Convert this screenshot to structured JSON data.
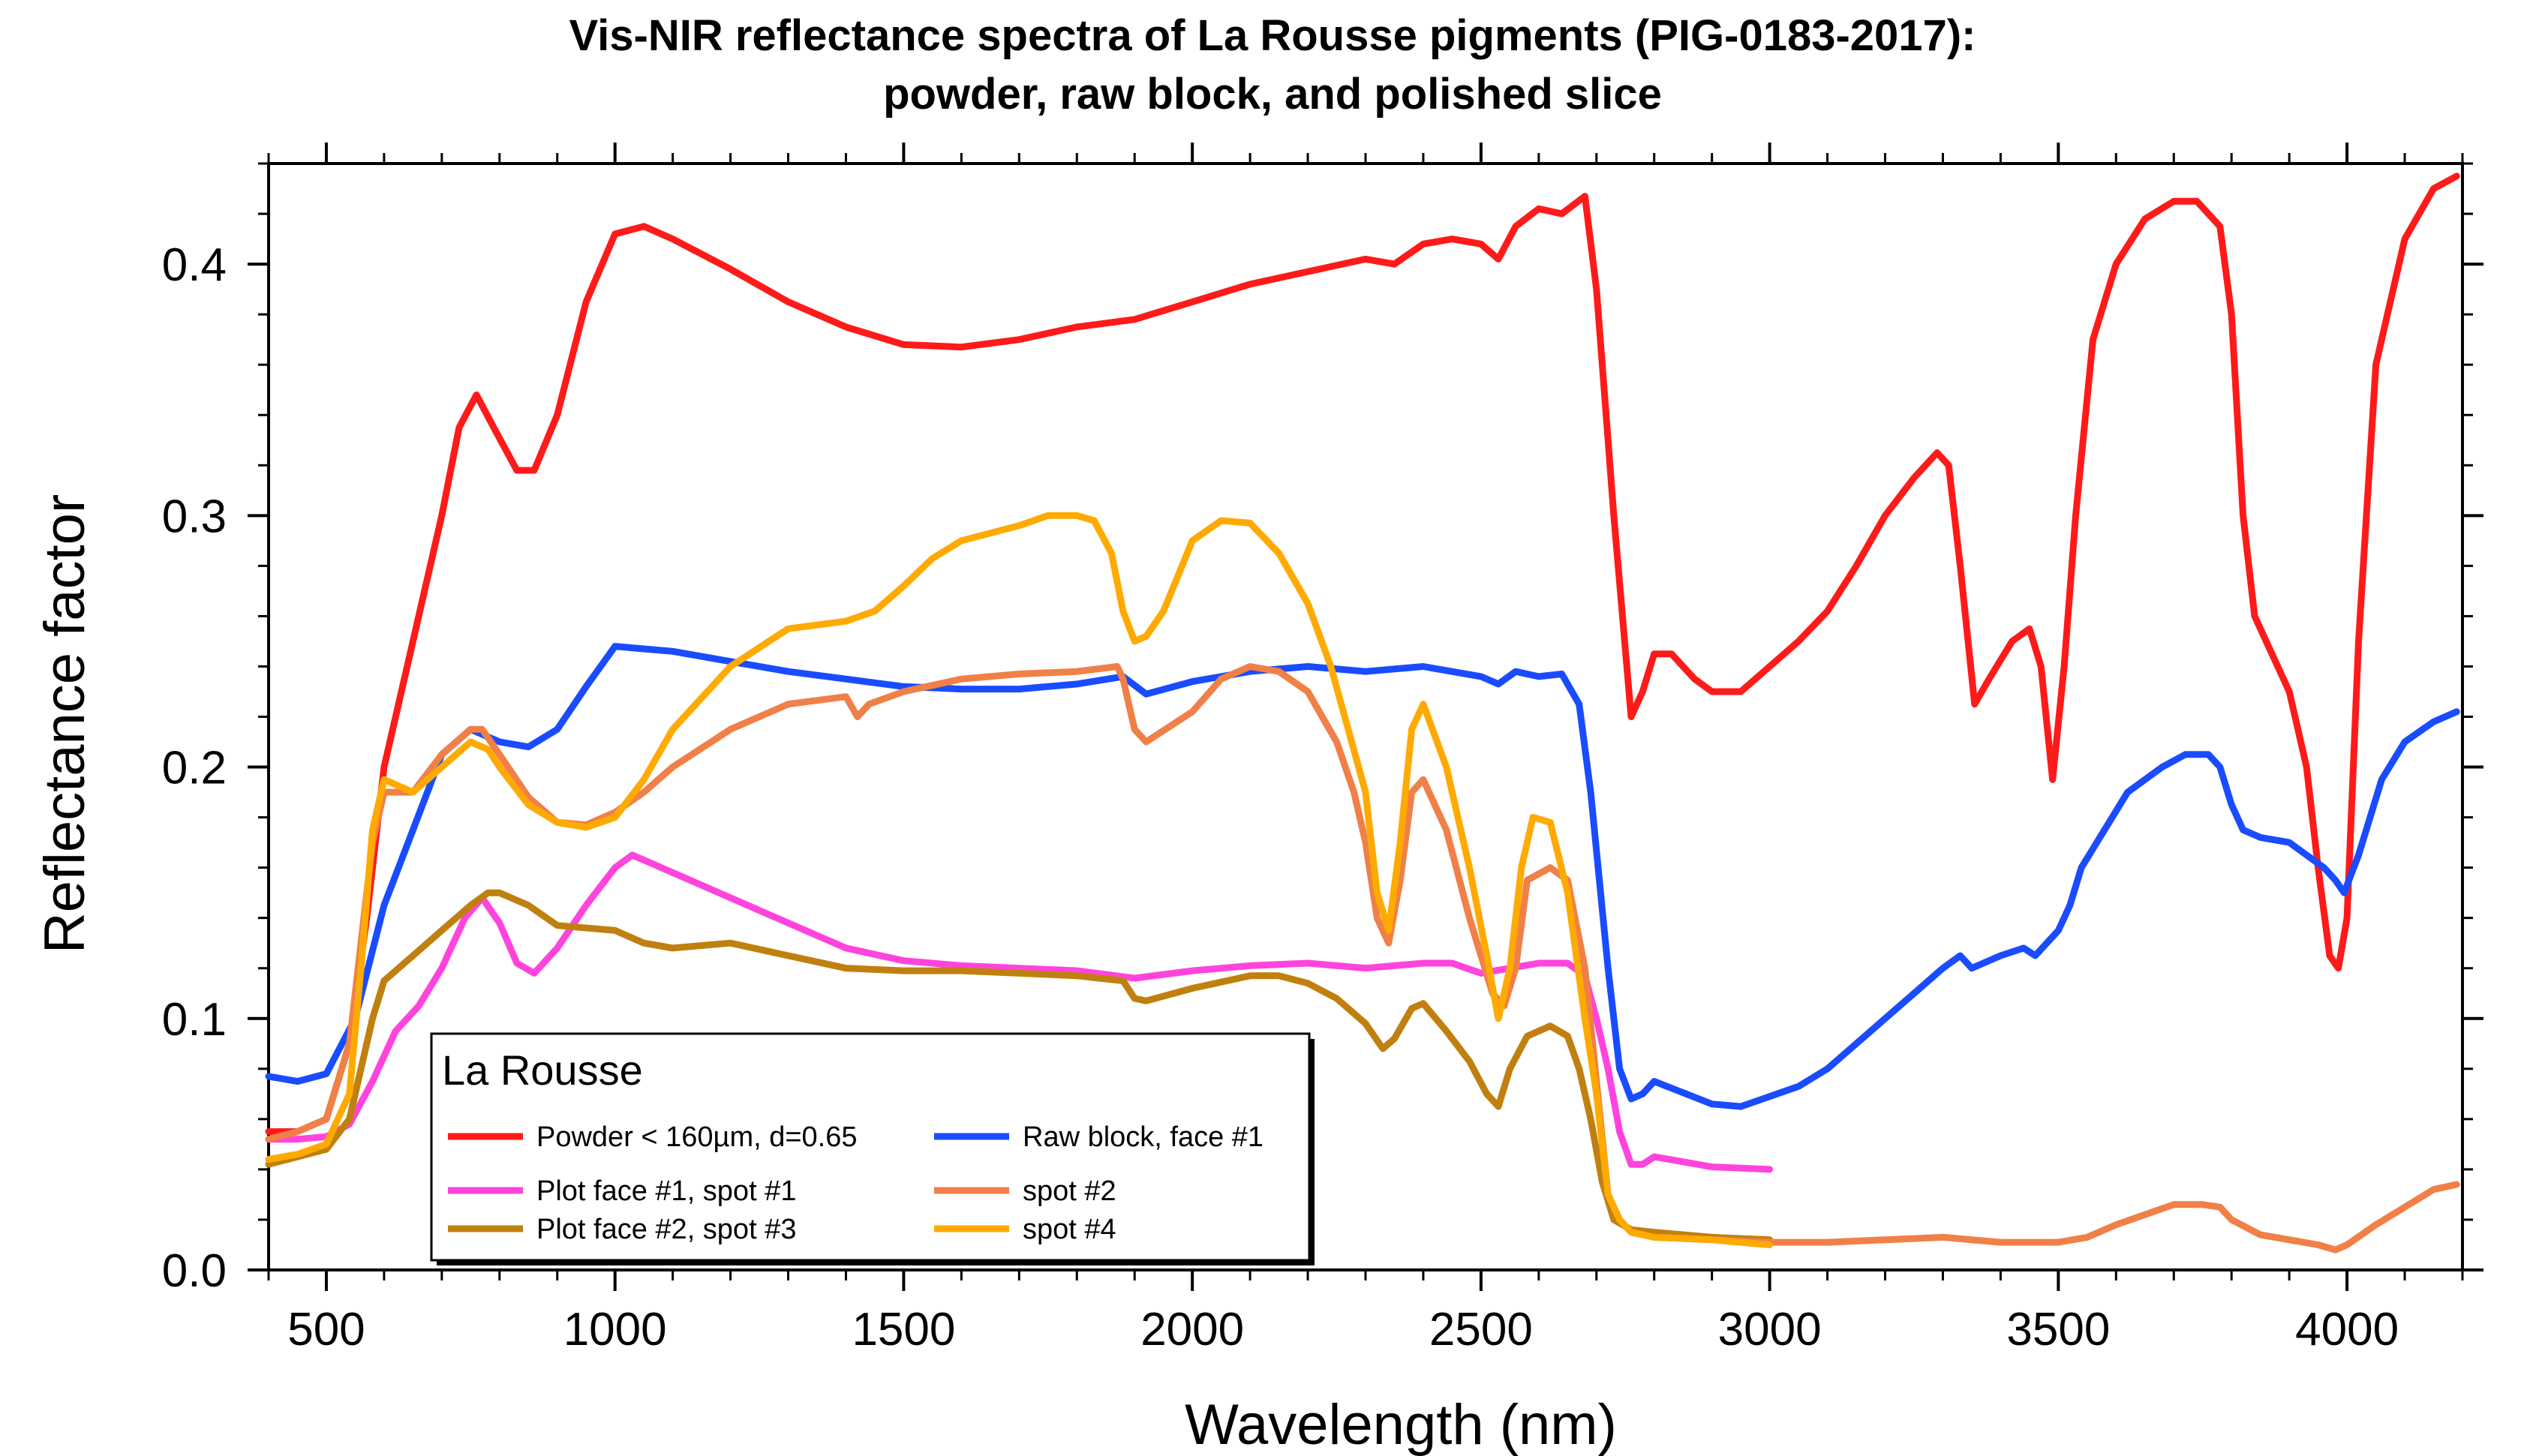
{
  "chart_data": {
    "type": "line",
    "title": "Vis-NIR reflectance spectra of La Rousse pigments (PIG-0183-2017):",
    "subtitle": "powder, raw block, and polished slice",
    "xlabel": "Wavelength (nm)",
    "ylabel": "Reflectance factor",
    "xlim": [
      400,
      4200
    ],
    "ylim": [
      0,
      0.44
    ],
    "xticks": [
      500,
      1000,
      1500,
      2000,
      2500,
      3000,
      3500,
      4000
    ],
    "xtick_labels": [
      "500",
      "1000",
      "1500",
      "2000",
      "2500",
      "3000",
      "3500",
      "4000"
    ],
    "yticks": [
      0.0,
      0.1,
      0.2,
      0.3,
      0.4
    ],
    "ytick_labels": [
      "0.0",
      "0.1",
      "0.2",
      "0.3",
      "0.4"
    ],
    "grid": false,
    "legend": {
      "title": "La Rousse",
      "placement": "bottom-left"
    },
    "series": [
      {
        "name": "Powder < 160µm, d=0.65",
        "color": "#ff1a1a",
        "x": [
          400,
          450,
          500,
          540,
          570,
          600,
          650,
          700,
          730,
          760,
          790,
          830,
          860,
          900,
          950,
          1000,
          1050,
          1100,
          1200,
          1300,
          1400,
          1500,
          1600,
          1700,
          1800,
          1900,
          2000,
          2100,
          2200,
          2300,
          2350,
          2400,
          2450,
          2500,
          2530,
          2560,
          2600,
          2640,
          2680,
          2700,
          2730,
          2760,
          2780,
          2800,
          2830,
          2870,
          2900,
          2950,
          3000,
          3050,
          3100,
          3150,
          3200,
          3250,
          3290,
          3310,
          3330,
          3355,
          3380,
          3420,
          3450,
          3470,
          3490,
          3510,
          3530,
          3560,
          3600,
          3650,
          3700,
          3740,
          3780,
          3800,
          3820,
          3840,
          3870,
          3900,
          3930,
          3950,
          3970,
          3985,
          4000,
          4020,
          4050,
          4100,
          4150,
          4190
        ],
        "y": [
          0.055,
          0.055,
          0.06,
          0.09,
          0.14,
          0.2,
          0.25,
          0.3,
          0.335,
          0.348,
          0.335,
          0.318,
          0.318,
          0.34,
          0.385,
          0.412,
          0.415,
          0.41,
          0.398,
          0.385,
          0.375,
          0.368,
          0.367,
          0.37,
          0.375,
          0.378,
          0.385,
          0.392,
          0.397,
          0.402,
          0.4,
          0.408,
          0.41,
          0.408,
          0.402,
          0.415,
          0.422,
          0.42,
          0.427,
          0.39,
          0.3,
          0.22,
          0.23,
          0.245,
          0.245,
          0.235,
          0.23,
          0.23,
          0.24,
          0.25,
          0.262,
          0.28,
          0.3,
          0.315,
          0.325,
          0.32,
          0.28,
          0.225,
          0.235,
          0.25,
          0.255,
          0.24,
          0.195,
          0.24,
          0.3,
          0.37,
          0.4,
          0.418,
          0.425,
          0.425,
          0.415,
          0.38,
          0.3,
          0.26,
          0.245,
          0.23,
          0.2,
          0.16,
          0.125,
          0.12,
          0.14,
          0.25,
          0.36,
          0.41,
          0.43,
          0.435
        ]
      },
      {
        "name": "Raw block, face #1",
        "color": "#1a4cff",
        "x": [
          400,
          450,
          500,
          550,
          600,
          650,
          700,
          750,
          800,
          850,
          900,
          950,
          1000,
          1050,
          1100,
          1200,
          1300,
          1400,
          1500,
          1600,
          1700,
          1800,
          1880,
          1920,
          2000,
          2100,
          2200,
          2300,
          2400,
          2500,
          2530,
          2560,
          2600,
          2640,
          2670,
          2690,
          2720,
          2740,
          2760,
          2780,
          2800,
          2900,
          2950,
          3000,
          3050,
          3100,
          3150,
          3200,
          3250,
          3300,
          3330,
          3350,
          3400,
          3440,
          3460,
          3480,
          3500,
          3520,
          3540,
          3580,
          3620,
          3680,
          3720,
          3760,
          3780,
          3800,
          3820,
          3850,
          3900,
          3930,
          3960,
          3980,
          3995,
          4020,
          4060,
          4100,
          4150,
          4190
        ],
        "y": [
          0.077,
          0.075,
          0.078,
          0.1,
          0.145,
          0.175,
          0.205,
          0.215,
          0.21,
          0.208,
          0.215,
          0.232,
          0.248,
          0.247,
          0.246,
          0.242,
          0.238,
          0.235,
          0.232,
          0.231,
          0.231,
          0.233,
          0.236,
          0.229,
          0.234,
          0.238,
          0.24,
          0.238,
          0.24,
          0.236,
          0.233,
          0.238,
          0.236,
          0.237,
          0.225,
          0.19,
          0.12,
          0.08,
          0.068,
          0.07,
          0.075,
          0.066,
          0.065,
          0.069,
          0.073,
          0.08,
          0.09,
          0.1,
          0.11,
          0.12,
          0.125,
          0.12,
          0.125,
          0.128,
          0.125,
          0.13,
          0.135,
          0.145,
          0.16,
          0.175,
          0.19,
          0.2,
          0.205,
          0.205,
          0.2,
          0.185,
          0.175,
          0.172,
          0.17,
          0.165,
          0.16,
          0.155,
          0.15,
          0.165,
          0.195,
          0.21,
          0.218,
          0.222
        ]
      },
      {
        "name": "Plot face #1, spot #1",
        "color": "#ff44dd",
        "x": [
          400,
          450,
          500,
          540,
          580,
          620,
          660,
          700,
          740,
          770,
          800,
          830,
          860,
          900,
          950,
          1000,
          1030,
          1060,
          1100,
          1200,
          1300,
          1400,
          1500,
          1600,
          1700,
          1800,
          1900,
          2000,
          2100,
          2200,
          2300,
          2400,
          2450,
          2500,
          2550,
          2600,
          2650,
          2680,
          2700,
          2720,
          2740,
          2760,
          2780,
          2800,
          2900,
          3000
        ],
        "y": [
          0.052,
          0.052,
          0.053,
          0.058,
          0.075,
          0.095,
          0.105,
          0.12,
          0.14,
          0.148,
          0.138,
          0.122,
          0.118,
          0.128,
          0.145,
          0.16,
          0.165,
          0.162,
          0.158,
          0.148,
          0.138,
          0.128,
          0.123,
          0.121,
          0.12,
          0.119,
          0.116,
          0.119,
          0.121,
          0.122,
          0.12,
          0.122,
          0.122,
          0.118,
          0.12,
          0.122,
          0.122,
          0.117,
          0.1,
          0.08,
          0.055,
          0.042,
          0.042,
          0.045,
          0.041,
          0.04
        ]
      },
      {
        "name": "Plot face #2, spot #3",
        "color": "#c08010",
        "x": [
          400,
          450,
          500,
          540,
          560,
          580,
          600,
          650,
          700,
          750,
          780,
          800,
          850,
          900,
          1000,
          1050,
          1100,
          1200,
          1300,
          1400,
          1500,
          1600,
          1700,
          1800,
          1880,
          1900,
          1920,
          2000,
          2100,
          2150,
          2200,
          2250,
          2300,
          2330,
          2350,
          2380,
          2400,
          2440,
          2480,
          2510,
          2530,
          2550,
          2580,
          2620,
          2650,
          2670,
          2690,
          2710,
          2730,
          2760,
          2800,
          2900,
          3000
        ],
        "y": [
          0.042,
          0.045,
          0.048,
          0.06,
          0.08,
          0.1,
          0.115,
          0.125,
          0.135,
          0.145,
          0.15,
          0.15,
          0.145,
          0.137,
          0.135,
          0.13,
          0.128,
          0.13,
          0.125,
          0.12,
          0.119,
          0.119,
          0.118,
          0.117,
          0.115,
          0.108,
          0.107,
          0.112,
          0.117,
          0.117,
          0.114,
          0.108,
          0.098,
          0.088,
          0.092,
          0.104,
          0.106,
          0.095,
          0.083,
          0.07,
          0.065,
          0.08,
          0.093,
          0.097,
          0.093,
          0.08,
          0.06,
          0.035,
          0.02,
          0.016,
          0.015,
          0.013,
          0.012
        ]
      },
      {
        "name": "spot #2",
        "color": "#f08048",
        "x": [
          400,
          450,
          500,
          540,
          560,
          580,
          600,
          650,
          700,
          750,
          770,
          800,
          850,
          900,
          950,
          1000,
          1050,
          1100,
          1200,
          1300,
          1400,
          1420,
          1440,
          1500,
          1600,
          1700,
          1800,
          1870,
          1880,
          1900,
          1920,
          2000,
          2050,
          2100,
          2150,
          2200,
          2250,
          2280,
          2300,
          2320,
          2340,
          2360,
          2380,
          2400,
          2440,
          2480,
          2520,
          2540,
          2560,
          2580,
          2620,
          2650,
          2680,
          2700,
          2720,
          2740,
          2760,
          2800,
          2900,
          3000,
          3100,
          3200,
          3300,
          3400,
          3500,
          3550,
          3600,
          3650,
          3700,
          3750,
          3780,
          3800,
          3850,
          3900,
          3950,
          3980,
          4000,
          4050,
          4100,
          4150,
          4190
        ],
        "y": [
          0.052,
          0.055,
          0.06,
          0.09,
          0.13,
          0.17,
          0.19,
          0.19,
          0.205,
          0.215,
          0.215,
          0.205,
          0.188,
          0.178,
          0.177,
          0.182,
          0.19,
          0.2,
          0.215,
          0.225,
          0.228,
          0.22,
          0.225,
          0.23,
          0.235,
          0.237,
          0.238,
          0.24,
          0.235,
          0.215,
          0.21,
          0.222,
          0.235,
          0.24,
          0.238,
          0.23,
          0.21,
          0.19,
          0.17,
          0.14,
          0.13,
          0.155,
          0.19,
          0.195,
          0.175,
          0.14,
          0.11,
          0.105,
          0.12,
          0.155,
          0.16,
          0.155,
          0.12,
          0.075,
          0.03,
          0.02,
          0.015,
          0.013,
          0.012,
          0.011,
          0.011,
          0.012,
          0.013,
          0.011,
          0.011,
          0.013,
          0.018,
          0.022,
          0.026,
          0.026,
          0.025,
          0.02,
          0.014,
          0.012,
          0.01,
          0.008,
          0.01,
          0.018,
          0.025,
          0.032,
          0.034
        ]
      },
      {
        "name": "spot #4",
        "color": "#ffaa00",
        "x": [
          400,
          450,
          500,
          540,
          560,
          580,
          600,
          650,
          700,
          750,
          780,
          800,
          850,
          900,
          950,
          1000,
          1050,
          1100,
          1200,
          1300,
          1400,
          1450,
          1500,
          1550,
          1600,
          1700,
          1750,
          1800,
          1830,
          1860,
          1880,
          1900,
          1920,
          1950,
          2000,
          2050,
          2100,
          2150,
          2200,
          2240,
          2270,
          2300,
          2320,
          2340,
          2360,
          2380,
          2400,
          2440,
          2480,
          2510,
          2530,
          2550,
          2570,
          2590,
          2620,
          2650,
          2680,
          2700,
          2720,
          2740,
          2760,
          2800,
          2900,
          3000
        ],
        "y": [
          0.044,
          0.046,
          0.05,
          0.07,
          0.12,
          0.175,
          0.195,
          0.19,
          0.2,
          0.21,
          0.207,
          0.2,
          0.185,
          0.178,
          0.176,
          0.18,
          0.195,
          0.215,
          0.24,
          0.255,
          0.258,
          0.262,
          0.272,
          0.283,
          0.29,
          0.296,
          0.3,
          0.3,
          0.298,
          0.285,
          0.262,
          0.25,
          0.252,
          0.262,
          0.29,
          0.298,
          0.297,
          0.285,
          0.265,
          0.24,
          0.215,
          0.19,
          0.15,
          0.135,
          0.17,
          0.215,
          0.225,
          0.2,
          0.16,
          0.125,
          0.1,
          0.12,
          0.16,
          0.18,
          0.178,
          0.15,
          0.1,
          0.07,
          0.03,
          0.02,
          0.015,
          0.013,
          0.012,
          0.01
        ]
      }
    ]
  }
}
